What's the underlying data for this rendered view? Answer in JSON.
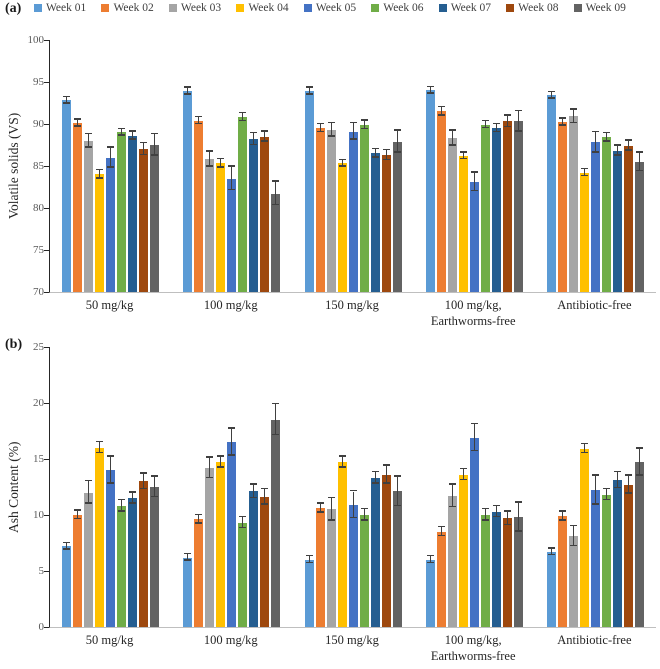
{
  "figure": {
    "style": {
      "background": "#ffffff",
      "y_axis_color": "#262626",
      "x_axis_color": "#bfbfbf",
      "tick_label_color": "#595959",
      "error_bar_color": "#404040"
    }
  },
  "chart_data": [
    {
      "type": "bar",
      "panel_label": "(a)",
      "ylabel": "Volatile solids (VS)",
      "ylim": [
        70,
        100
      ],
      "yticks": [
        100,
        95,
        90,
        85,
        80,
        75,
        70
      ],
      "grid": false,
      "legend_position": "top",
      "categories": [
        "50 mg/kg",
        "100 mg/kg",
        "150 mg/kg",
        "100 mg/kg,\nEarthworms-free",
        "Antibiotic-free"
      ],
      "series": [
        {
          "name": "Week 01",
          "color": "#5B9BD5",
          "values": [
            92.8,
            93.9,
            93.9,
            94.0,
            93.4
          ],
          "errors": [
            0.4,
            0.4,
            0.4,
            0.4,
            0.4
          ]
        },
        {
          "name": "Week 02",
          "color": "#ED7D31",
          "values": [
            90.1,
            90.4,
            89.5,
            91.5,
            90.2
          ],
          "errors": [
            0.4,
            0.4,
            0.5,
            0.5,
            0.4
          ]
        },
        {
          "name": "Week 03",
          "color": "#A5A5A5",
          "values": [
            88.0,
            85.8,
            89.3,
            88.3,
            90.9
          ],
          "errors": [
            0.8,
            0.9,
            0.8,
            0.9,
            0.8
          ]
        },
        {
          "name": "Week 04",
          "color": "#FFC000",
          "values": [
            84.0,
            85.3,
            85.3,
            86.2,
            84.2
          ],
          "errors": [
            0.5,
            0.5,
            0.4,
            0.4,
            0.4
          ]
        },
        {
          "name": "Week 05",
          "color": "#4472C4",
          "values": [
            86.0,
            83.5,
            89.1,
            83.1,
            87.8
          ],
          "errors": [
            1.2,
            1.4,
            1.0,
            1.1,
            1.2
          ]
        },
        {
          "name": "Week 06",
          "color": "#70AD47",
          "values": [
            89.0,
            90.8,
            89.9,
            89.9,
            88.4
          ],
          "errors": [
            0.4,
            0.5,
            0.5,
            0.4,
            0.5
          ]
        },
        {
          "name": "Week 07",
          "color": "#255E91",
          "values": [
            88.6,
            88.2,
            86.5,
            89.5,
            86.8
          ],
          "errors": [
            0.5,
            0.7,
            0.5,
            0.5,
            0.6
          ]
        },
        {
          "name": "Week 08",
          "color": "#9E480E",
          "values": [
            87.0,
            88.5,
            86.3,
            90.3,
            87.4
          ],
          "errors": [
            0.7,
            0.6,
            0.6,
            0.7,
            0.6
          ]
        },
        {
          "name": "Week 09",
          "color": "#636363",
          "values": [
            87.5,
            81.7,
            87.9,
            90.3,
            85.5
          ],
          "errors": [
            1.3,
            1.4,
            1.3,
            1.2,
            1.1
          ]
        }
      ]
    },
    {
      "type": "bar",
      "panel_label": "(b)",
      "ylabel": "Ash Content (%)",
      "ylim": [
        0,
        25
      ],
      "yticks": [
        25,
        20,
        15,
        10,
        5,
        0
      ],
      "grid": false,
      "legend_position": "none",
      "categories": [
        "50 mg/kg",
        "100 mg/kg",
        "150 mg/kg",
        "100 mg/kg,\nEarthworms-free",
        "Antibiotic-free"
      ],
      "series": [
        {
          "name": "Week 01",
          "color": "#5B9BD5",
          "values": [
            7.2,
            6.2,
            6.0,
            6.0,
            6.7
          ],
          "errors": [
            0.3,
            0.3,
            0.3,
            0.3,
            0.3
          ]
        },
        {
          "name": "Week 02",
          "color": "#ED7D31",
          "values": [
            10.0,
            9.6,
            10.6,
            8.5,
            9.9
          ],
          "errors": [
            0.4,
            0.4,
            0.4,
            0.4,
            0.4
          ]
        },
        {
          "name": "Week 03",
          "color": "#A5A5A5",
          "values": [
            12.0,
            14.2,
            10.5,
            11.7,
            8.1
          ],
          "errors": [
            1.0,
            0.9,
            1.0,
            1.0,
            0.9
          ]
        },
        {
          "name": "Week 04",
          "color": "#FFC000",
          "values": [
            16.0,
            14.7,
            14.7,
            13.6,
            15.9
          ],
          "errors": [
            0.5,
            0.5,
            0.5,
            0.5,
            0.4
          ]
        },
        {
          "name": "Week 05",
          "color": "#4472C4",
          "values": [
            14.0,
            16.5,
            10.9,
            16.9,
            12.2
          ],
          "errors": [
            1.2,
            1.2,
            1.2,
            1.2,
            1.3
          ]
        },
        {
          "name": "Week 06",
          "color": "#70AD47",
          "values": [
            10.8,
            9.3,
            10.0,
            10.0,
            11.8
          ],
          "errors": [
            0.5,
            0.5,
            0.5,
            0.5,
            0.5
          ]
        },
        {
          "name": "Week 07",
          "color": "#255E91",
          "values": [
            11.5,
            12.1,
            13.3,
            10.3,
            13.1
          ],
          "errors": [
            0.5,
            0.6,
            0.5,
            0.5,
            0.7
          ]
        },
        {
          "name": "Week 08",
          "color": "#9E480E",
          "values": [
            13.0,
            11.6,
            13.6,
            9.7,
            12.7
          ],
          "errors": [
            0.7,
            0.7,
            0.8,
            0.6,
            0.8
          ]
        },
        {
          "name": "Week 09",
          "color": "#636363",
          "values": [
            12.5,
            18.5,
            12.1,
            9.8,
            14.7
          ],
          "errors": [
            0.9,
            1.4,
            1.3,
            1.3,
            1.2
          ]
        }
      ]
    }
  ]
}
